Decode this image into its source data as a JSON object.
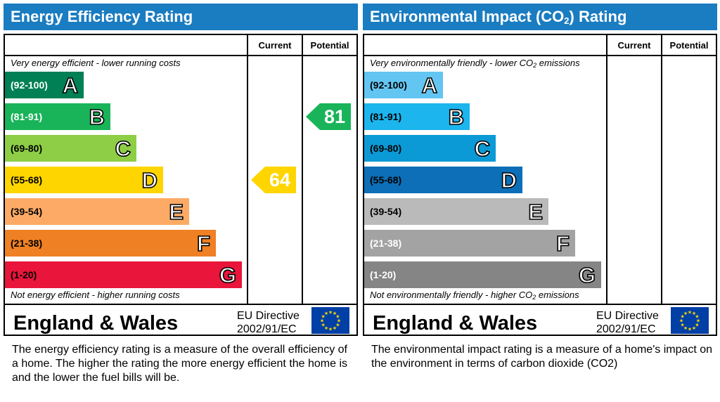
{
  "chart_data": [
    {
      "type": "bar",
      "title": "Energy Efficiency Rating",
      "columns": [
        "Current",
        "Potential"
      ],
      "top_note": "Very energy efficient - lower running costs",
      "bottom_note": "Not energy efficient - higher running costs",
      "bands": [
        {
          "range": "(92-100)",
          "letter": "A",
          "color": "#008054",
          "text_color": "#ffffff"
        },
        {
          "range": "(81-91)",
          "letter": "B",
          "color": "#19b459",
          "text_color": "#ffffff"
        },
        {
          "range": "(69-80)",
          "letter": "C",
          "color": "#8dce46",
          "text_color": "#000000"
        },
        {
          "range": "(55-68)",
          "letter": "D",
          "color": "#ffd500",
          "text_color": "#000000"
        },
        {
          "range": "(39-54)",
          "letter": "E",
          "color": "#fcaa65",
          "text_color": "#000000"
        },
        {
          "range": "(21-38)",
          "letter": "F",
          "color": "#ef8023",
          "text_color": "#000000"
        },
        {
          "range": "(1-20)",
          "letter": "G",
          "color": "#e9153b",
          "text_color": "#000000"
        }
      ],
      "current": {
        "value": 64,
        "band": "D",
        "color": "#ffd500"
      },
      "potential": {
        "value": 81,
        "band": "B",
        "color": "#19b459"
      },
      "footer_region": "England & Wales",
      "footer_directive_1": "EU Directive",
      "footer_directive_2": "2002/91/EC",
      "description": "The energy efficiency rating is a measure of the overall efficiency of a home.  The higher the rating the more energy efficient the home is and the lower the fuel bills will be."
    },
    {
      "type": "bar",
      "title_main": "Environmental Impact (CO",
      "title_sub": "2",
      "title_end": ") Rating",
      "columns": [
        "Current",
        "Potential"
      ],
      "top_note_main": "Very environmentally friendly - lower CO",
      "top_note_sub": "2",
      "top_note_end": " emissions",
      "bottom_note_main": "Not environmentally friendly - higher CO",
      "bottom_note_sub": "2",
      "bottom_note_end": " emissions",
      "bands": [
        {
          "range": "(92-100)",
          "letter": "A",
          "color": "#63c5f2",
          "text_color": "#000000"
        },
        {
          "range": "(81-91)",
          "letter": "B",
          "color": "#1cb5ee",
          "text_color": "#000000"
        },
        {
          "range": "(69-80)",
          "letter": "C",
          "color": "#0b9ad6",
          "text_color": "#000000"
        },
        {
          "range": "(55-68)",
          "letter": "D",
          "color": "#0c6fb7",
          "text_color": "#000000"
        },
        {
          "range": "(39-54)",
          "letter": "E",
          "color": "#bababa",
          "text_color": "#000000"
        },
        {
          "range": "(21-38)",
          "letter": "F",
          "color": "#a3a3a3",
          "text_color": "#ffffff"
        },
        {
          "range": "(1-20)",
          "letter": "G",
          "color": "#858585",
          "text_color": "#ffffff"
        }
      ],
      "footer_region": "England & Wales",
      "footer_directive_1": "EU Directive",
      "footer_directive_2": "2002/91/EC",
      "description": "The environmental impact rating is a measure of a home's impact on the environment in terms of carbon dioxide (CO2)"
    }
  ],
  "accent_header": "#1a7cc1",
  "icons": {
    "flag": "eu-flag-icon"
  }
}
